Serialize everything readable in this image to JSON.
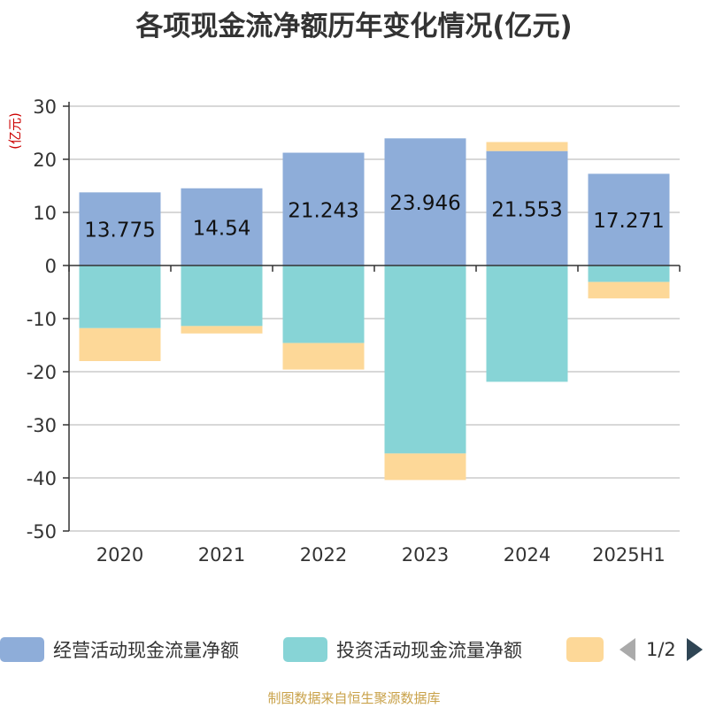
{
  "chart_data": {
    "type": "bar",
    "stacked": true,
    "title": "各项现金流净额历年变化情况(亿元)",
    "ylabel": "(亿元)",
    "categories": [
      "2020",
      "2021",
      "2022",
      "2023",
      "2024",
      "2025H1"
    ],
    "ylim": [
      -50,
      30
    ],
    "yticks": [
      30,
      20,
      10,
      0,
      -10,
      -20,
      -30,
      -40,
      -50
    ],
    "grid": true,
    "legend_position": "bottom",
    "series": [
      {
        "name": "经营活动现金流量净额",
        "color": "#8eadd9",
        "values": [
          13.775,
          14.54,
          21.243,
          23.946,
          21.553,
          17.271
        ],
        "labels": [
          "13.775",
          "14.54",
          "21.243",
          "23.946",
          "21.553",
          "17.271"
        ]
      },
      {
        "name": "投资活动现金流量净额",
        "color": "#87d4d6",
        "values": [
          -11.8,
          -11.4,
          -14.6,
          -35.4,
          -21.9,
          -3.1
        ]
      },
      {
        "name": "",
        "color": "#fdd898",
        "values": [
          -6.2,
          -1.4,
          -5.0,
          -5.0,
          1.7,
          -3.1
        ]
      }
    ]
  },
  "legend_pager": {
    "text": "1/2"
  },
  "source_note": "制图数据来自恒生聚源数据库"
}
